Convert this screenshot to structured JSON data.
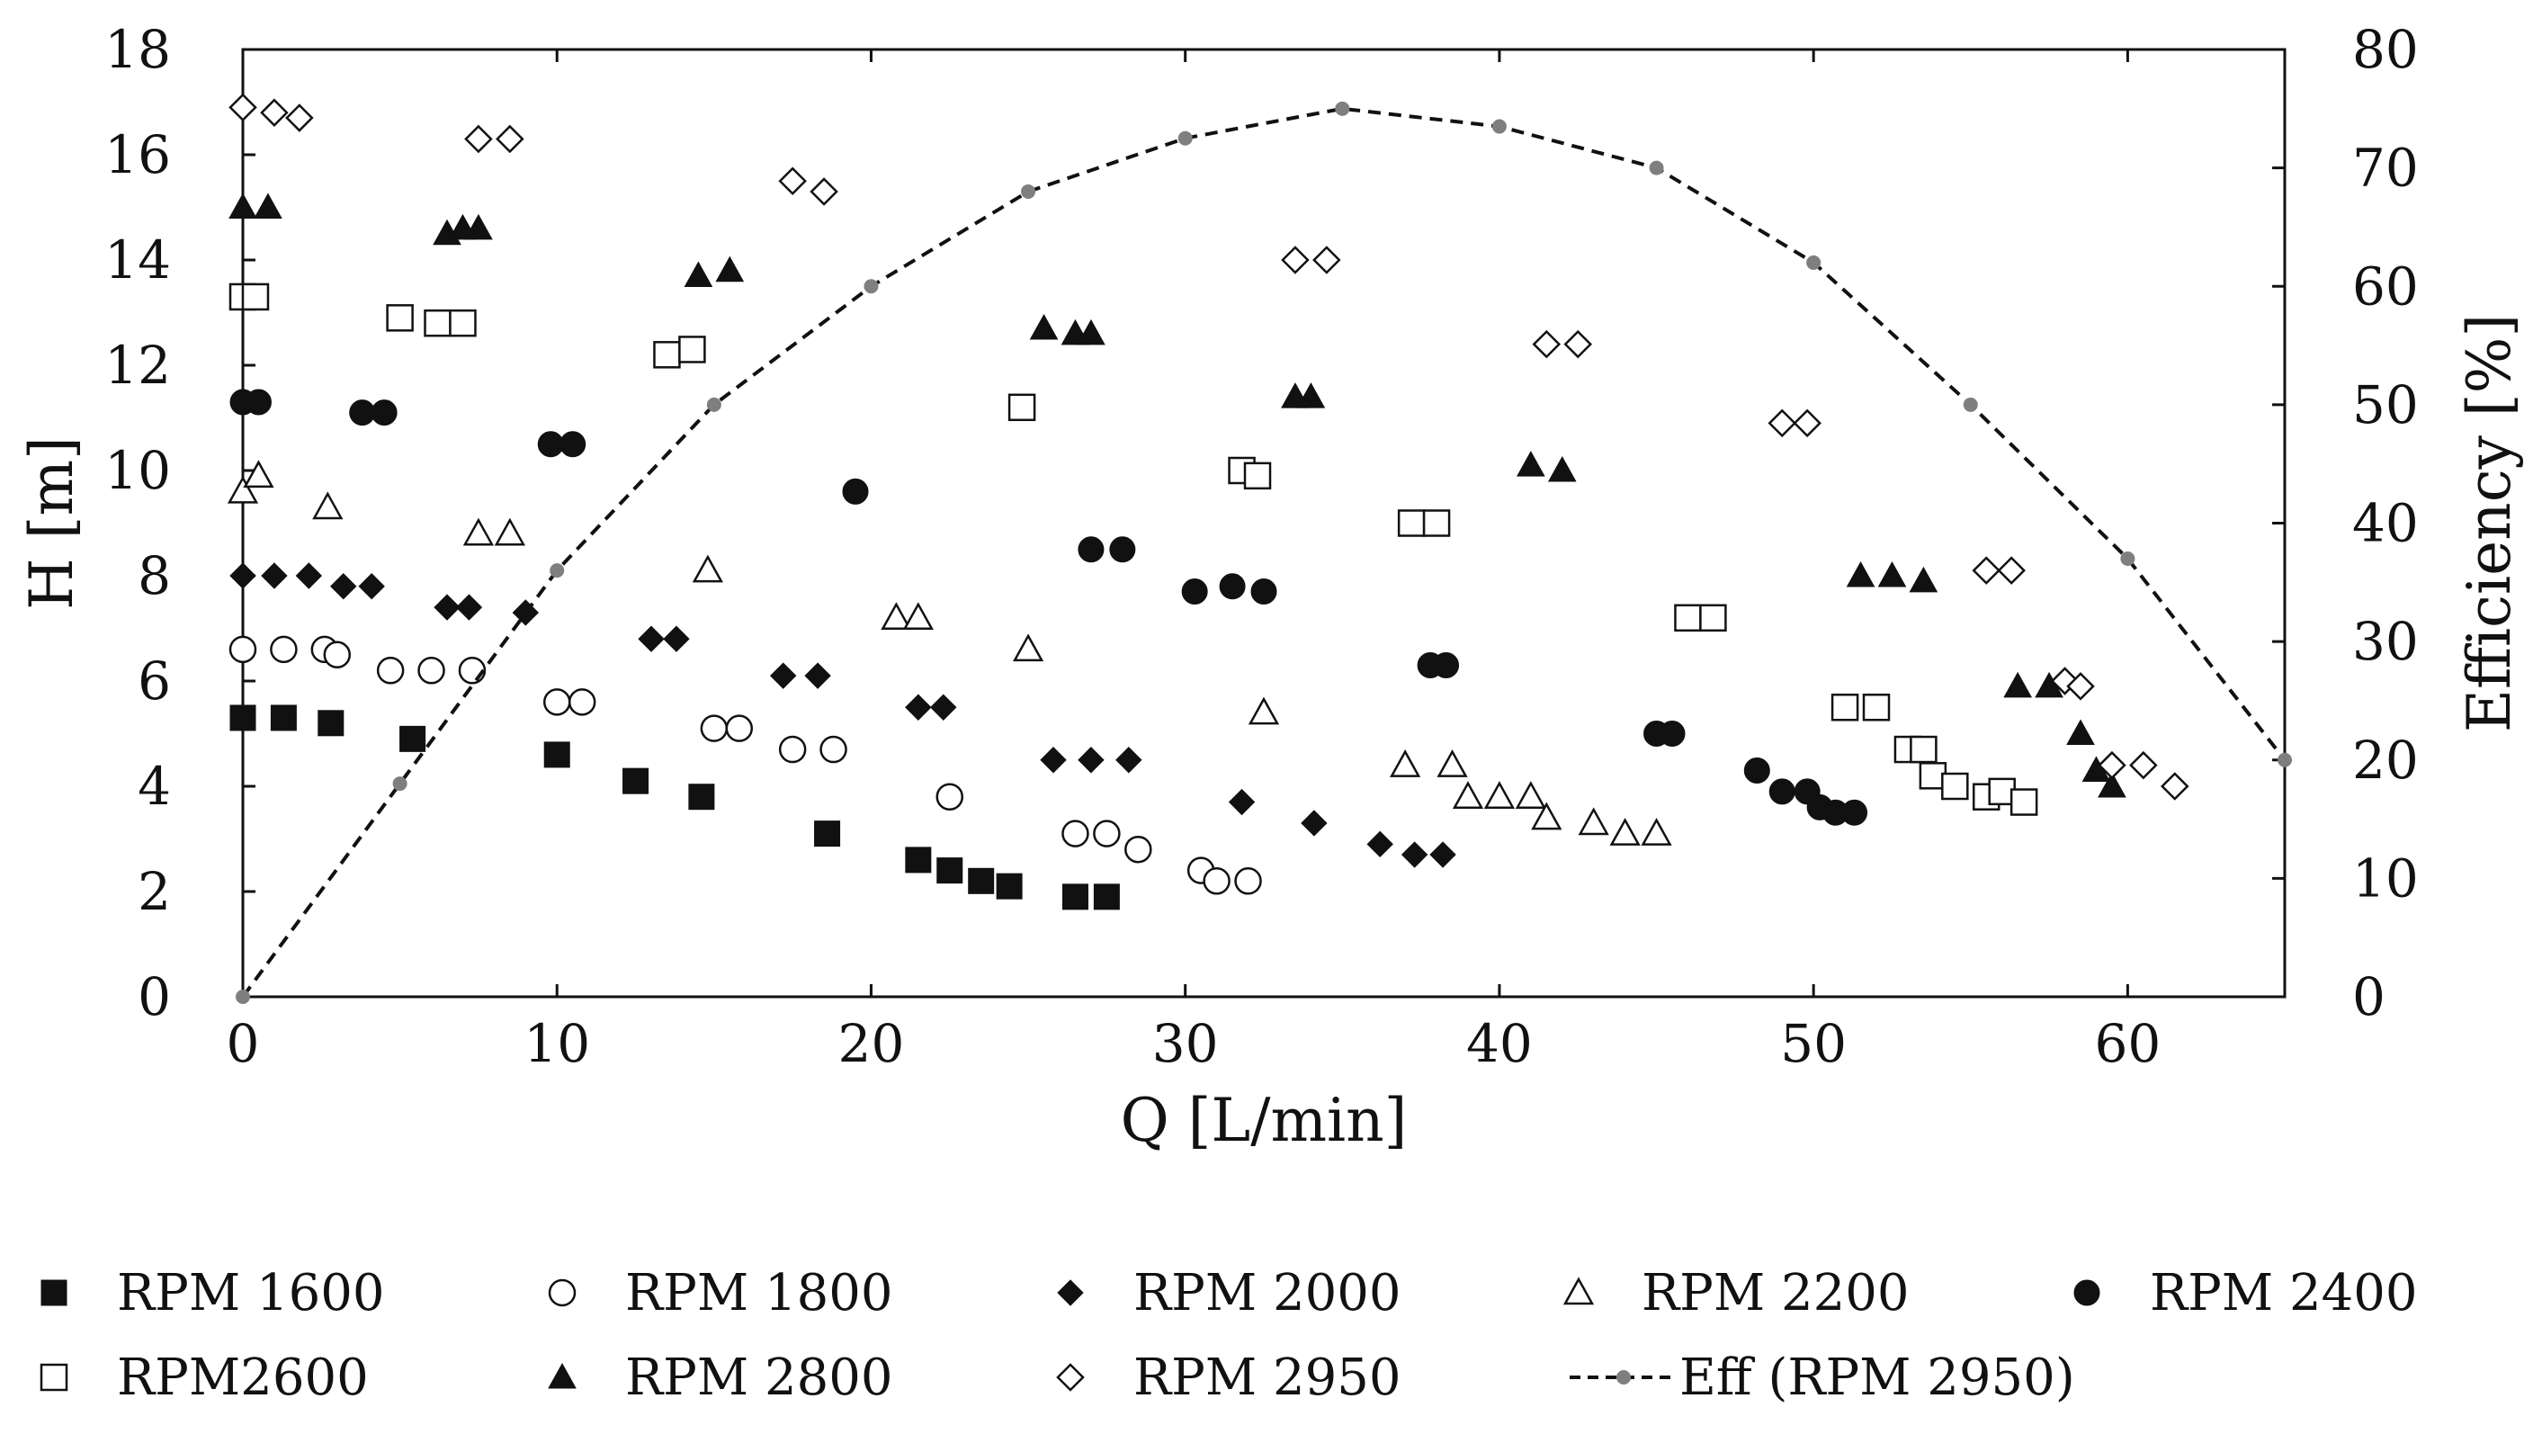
{
  "chart_data": {
    "type": "scatter",
    "title": "",
    "xlabel": "Q [L/min]",
    "ylabel": "H [m]",
    "y2label": "Efficiency [%]",
    "xlim": [
      0,
      65
    ],
    "ylim": [
      0,
      18
    ],
    "y2lim": [
      0,
      80
    ],
    "grid": false,
    "legend_position": "bottom",
    "x_ticks": [
      0,
      10,
      20,
      30,
      40,
      50,
      60
    ],
    "y_ticks": [
      0,
      2,
      4,
      6,
      8,
      10,
      12,
      14,
      16,
      18
    ],
    "y2_ticks": [
      0,
      10,
      20,
      30,
      40,
      50,
      60,
      70,
      80
    ],
    "series": [
      {
        "name": "RPM 1600",
        "marker": "square-filled",
        "axis": "left",
        "points": [
          [
            0,
            5.3
          ],
          [
            1.3,
            5.3
          ],
          [
            2.8,
            5.2
          ],
          [
            5.4,
            4.9
          ],
          [
            10,
            4.6
          ],
          [
            12.5,
            4.1
          ],
          [
            14.6,
            3.8
          ],
          [
            18.6,
            3.1
          ],
          [
            21.5,
            2.6
          ],
          [
            22.5,
            2.4
          ],
          [
            23.5,
            2.2
          ],
          [
            24.4,
            2.1
          ],
          [
            26.5,
            1.9
          ],
          [
            27.5,
            1.9
          ]
        ]
      },
      {
        "name": "RPM 1800",
        "marker": "circle-open",
        "axis": "left",
        "points": [
          [
            0,
            6.6
          ],
          [
            1.3,
            6.6
          ],
          [
            2.6,
            6.6
          ],
          [
            3,
            6.5
          ],
          [
            4.7,
            6.2
          ],
          [
            6,
            6.2
          ],
          [
            7.3,
            6.2
          ],
          [
            10,
            5.6
          ],
          [
            10.8,
            5.6
          ],
          [
            15,
            5.1
          ],
          [
            15.8,
            5.1
          ],
          [
            17.5,
            4.7
          ],
          [
            18.8,
            4.7
          ],
          [
            22.5,
            3.8
          ],
          [
            26.5,
            3.1
          ],
          [
            27.5,
            3.1
          ],
          [
            28.5,
            2.8
          ],
          [
            30.5,
            2.4
          ],
          [
            31,
            2.2
          ],
          [
            32,
            2.2
          ]
        ]
      },
      {
        "name": "RPM 2000",
        "marker": "diamond-filled",
        "axis": "left",
        "points": [
          [
            0,
            8
          ],
          [
            1,
            8
          ],
          [
            2.1,
            8
          ],
          [
            3.2,
            7.8
          ],
          [
            4.1,
            7.8
          ],
          [
            6.5,
            7.4
          ],
          [
            7.2,
            7.4
          ],
          [
            9,
            7.3
          ],
          [
            13,
            6.8
          ],
          [
            13.8,
            6.8
          ],
          [
            17.2,
            6.1
          ],
          [
            18.3,
            6.1
          ],
          [
            21.5,
            5.5
          ],
          [
            22.3,
            5.5
          ],
          [
            25.8,
            4.5
          ],
          [
            27,
            4.5
          ],
          [
            28.2,
            4.5
          ],
          [
            31.8,
            3.7
          ],
          [
            34.1,
            3.3
          ],
          [
            36.2,
            2.9
          ],
          [
            37.3,
            2.7
          ],
          [
            38.2,
            2.7
          ]
        ]
      },
      {
        "name": "RPM 2200",
        "marker": "triangle-open",
        "axis": "left",
        "points": [
          [
            0,
            9.6
          ],
          [
            0.5,
            9.9
          ],
          [
            2.7,
            9.3
          ],
          [
            7.5,
            8.8
          ],
          [
            8.5,
            8.8
          ],
          [
            14.8,
            8.1
          ],
          [
            20.8,
            7.2
          ],
          [
            21.5,
            7.2
          ],
          [
            25,
            6.6
          ],
          [
            32.5,
            5.4
          ],
          [
            37,
            4.4
          ],
          [
            38.5,
            4.4
          ],
          [
            39,
            3.8
          ],
          [
            40,
            3.8
          ],
          [
            41,
            3.8
          ],
          [
            41.5,
            3.4
          ],
          [
            43,
            3.3
          ],
          [
            44,
            3.1
          ],
          [
            45,
            3.1
          ]
        ]
      },
      {
        "name": "RPM 2400",
        "marker": "circle-filled",
        "axis": "left",
        "points": [
          [
            0,
            11.3
          ],
          [
            0.5,
            11.3
          ],
          [
            3.8,
            11.1
          ],
          [
            4.5,
            11.1
          ],
          [
            9.8,
            10.5
          ],
          [
            10.5,
            10.5
          ],
          [
            19.5,
            9.6
          ],
          [
            27,
            8.5
          ],
          [
            28,
            8.5
          ],
          [
            30.3,
            7.7
          ],
          [
            31.5,
            7.8
          ],
          [
            32.5,
            7.7
          ],
          [
            37.8,
            6.3
          ],
          [
            38.3,
            6.3
          ],
          [
            45,
            5
          ],
          [
            45.5,
            5
          ],
          [
            48.2,
            4.3
          ],
          [
            49,
            3.9
          ],
          [
            49.8,
            3.9
          ],
          [
            50.2,
            3.6
          ],
          [
            50.7,
            3.5
          ],
          [
            51.3,
            3.5
          ]
        ]
      },
      {
        "name": "RPM2600",
        "marker": "square-open",
        "axis": "left",
        "points": [
          [
            0,
            13.3
          ],
          [
            0.4,
            13.3
          ],
          [
            5,
            12.9
          ],
          [
            6.2,
            12.8
          ],
          [
            7,
            12.8
          ],
          [
            13.5,
            12.2
          ],
          [
            14.3,
            12.3
          ],
          [
            24.8,
            11.2
          ],
          [
            31.8,
            10
          ],
          [
            32.3,
            9.9
          ],
          [
            37.2,
            9
          ],
          [
            38,
            9
          ],
          [
            46,
            7.2
          ],
          [
            46.8,
            7.2
          ],
          [
            51,
            5.5
          ],
          [
            52,
            5.5
          ],
          [
            53,
            4.7
          ],
          [
            53.5,
            4.7
          ],
          [
            53.8,
            4.2
          ],
          [
            54.5,
            4
          ],
          [
            55.5,
            3.8
          ],
          [
            56,
            3.9
          ],
          [
            56.7,
            3.7
          ]
        ]
      },
      {
        "name": "RPM 2800",
        "marker": "triangle-filled",
        "axis": "left",
        "points": [
          [
            0,
            15
          ],
          [
            0.8,
            15
          ],
          [
            6.5,
            14.5
          ],
          [
            7,
            14.6
          ],
          [
            7.5,
            14.6
          ],
          [
            14.5,
            13.7
          ],
          [
            15.5,
            13.8
          ],
          [
            25.5,
            12.7
          ],
          [
            26.5,
            12.6
          ],
          [
            27,
            12.6
          ],
          [
            33.5,
            11.4
          ],
          [
            34,
            11.4
          ],
          [
            41,
            10.1
          ],
          [
            42,
            10
          ],
          [
            51.5,
            8
          ],
          [
            52.5,
            8
          ],
          [
            53.5,
            7.9
          ],
          [
            56.5,
            5.9
          ],
          [
            57.5,
            5.9
          ],
          [
            58.5,
            5
          ],
          [
            59,
            4.3
          ],
          [
            59.5,
            4
          ]
        ]
      },
      {
        "name": "RPM 2950",
        "marker": "diamond-open",
        "axis": "left",
        "points": [
          [
            0,
            16.9
          ],
          [
            1,
            16.8
          ],
          [
            1.8,
            16.7
          ],
          [
            7.5,
            16.3
          ],
          [
            8.5,
            16.3
          ],
          [
            17.5,
            15.5
          ],
          [
            18.5,
            15.3
          ],
          [
            33.5,
            14
          ],
          [
            34.5,
            14
          ],
          [
            41.5,
            12.4
          ],
          [
            42.5,
            12.4
          ],
          [
            49,
            10.9
          ],
          [
            49.8,
            10.9
          ],
          [
            55.5,
            8.1
          ],
          [
            56.3,
            8.1
          ],
          [
            58,
            6
          ],
          [
            58.5,
            5.9
          ],
          [
            59.5,
            4.4
          ],
          [
            60.5,
            4.4
          ],
          [
            61.5,
            4
          ]
        ]
      }
    ],
    "efficiency": {
      "name": "Eff (RPM 2950)",
      "marker": "circle-small-gray",
      "line": "dashed",
      "axis": "right",
      "x": [
        0,
        5,
        10,
        15,
        20,
        25,
        30,
        35,
        40,
        45,
        50,
        55,
        60,
        65
      ],
      "y": [
        0,
        18,
        36,
        50,
        60,
        68,
        72.5,
        75,
        73.5,
        70,
        62,
        50,
        37,
        20
      ]
    },
    "legend": [
      {
        "label": "RPM 1600",
        "marker": "square-filled"
      },
      {
        "label": "RPM 1800",
        "marker": "circle-open"
      },
      {
        "label": "RPM 2000",
        "marker": "diamond-filled"
      },
      {
        "label": "RPM 2200",
        "marker": "triangle-open"
      },
      {
        "label": "RPM 2400",
        "marker": "circle-filled"
      },
      {
        "label": "RPM2600",
        "marker": "square-open"
      },
      {
        "label": "RPM 2800",
        "marker": "triangle-filled"
      },
      {
        "label": "RPM 2950",
        "marker": "diamond-open"
      },
      {
        "label": "Eff (RPM 2950)",
        "marker": "dash-line"
      }
    ],
    "colors": {
      "ink": "#111111",
      "efficiency": "#7f7f7f",
      "background": "#ffffff"
    }
  }
}
